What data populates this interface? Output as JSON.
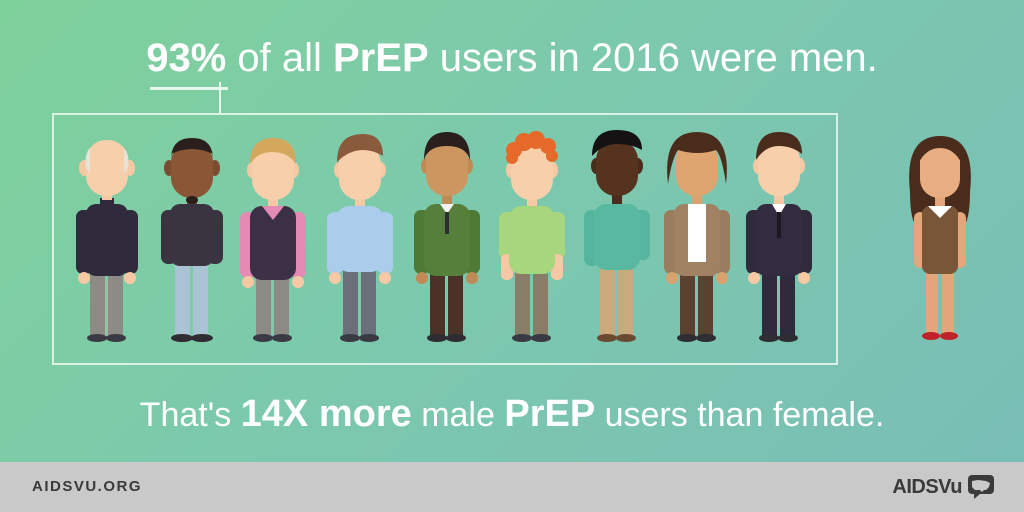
{
  "headline": {
    "percent": "93%",
    "part1": " of all ",
    "emph": "PrEP",
    "part2": " users in 2016 were men."
  },
  "subline": {
    "part1": "That's ",
    "emph1": "14X more",
    "part2": " male ",
    "emph2": "PrEP",
    "part3": " users than female."
  },
  "footer": {
    "url": "AIDSVU.ORG",
    "logo_text": "AIDSVu"
  },
  "illustration": {
    "male_figures_count": 9,
    "female_figures_count": 1
  },
  "colors": {
    "bg_start": "#7fd19b",
    "bg_end": "#79bdb6",
    "text": "#ffffff",
    "footer_bg": "#c9c9c9",
    "footer_text": "#3a3a3a"
  }
}
